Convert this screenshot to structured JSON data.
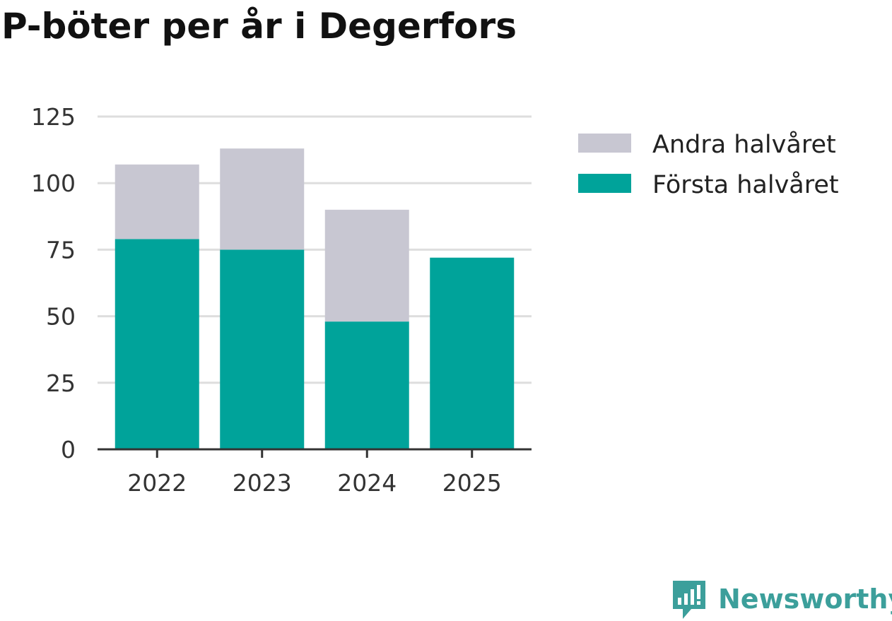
{
  "title": "P-böter per år i Degerfors",
  "brand": {
    "name": "Newsworthy",
    "icon": "newsworthy-logo-icon",
    "color": "#3c9f9b"
  },
  "chart_data": {
    "type": "bar",
    "stacked": true,
    "categories": [
      "2022",
      "2023",
      "2024",
      "2025"
    ],
    "series": [
      {
        "name": "Första halvåret",
        "color": "#00a39a",
        "values": [
          79,
          75,
          48,
          72
        ]
      },
      {
        "name": "Andra halvåret",
        "color": "#c8c7d2",
        "values": [
          28,
          38,
          42,
          0
        ]
      }
    ],
    "ylim": [
      0,
      125
    ],
    "yticks": [
      0,
      25,
      50,
      75,
      100,
      125
    ],
    "grid": true,
    "legend_position": "right",
    "legend_order": [
      "Andra halvåret",
      "Första halvåret"
    ]
  }
}
